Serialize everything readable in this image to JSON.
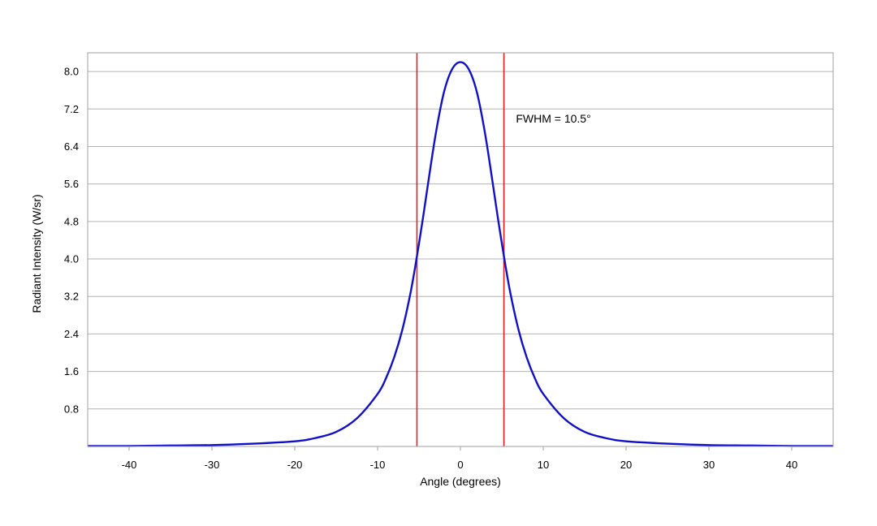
{
  "chart_data": {
    "type": "line",
    "title": "",
    "xlabel": "Angle (degrees)",
    "ylabel": "Radiant Intensity (W/sr)",
    "xlim": [
      -45,
      45
    ],
    "ylim": [
      0,
      8.4
    ],
    "x_ticks": [
      -40,
      -30,
      -20,
      -10,
      0,
      10,
      20,
      30,
      40
    ],
    "x_tick_labels": [
      "-40",
      "-30",
      "-20",
      "-10",
      "0",
      "10",
      "20",
      "30",
      "40"
    ],
    "y_ticks": [
      0.8,
      1.6,
      2.4,
      3.2,
      4.0,
      4.8,
      5.6,
      6.4,
      7.2,
      8.0
    ],
    "y_tick_labels": [
      "0.8",
      "1.6",
      "2.4",
      "3.2",
      "4.0",
      "4.8",
      "5.6",
      "6.4",
      "7.2",
      "8.0"
    ],
    "grid": "horizontal",
    "legend": "none",
    "series": [
      {
        "color": "#1010c8",
        "x": [
          -45,
          -40,
          -35,
          -30,
          -25,
          -20,
          -17.5,
          -15,
          -12.5,
          -10,
          -9,
          -8,
          -7,
          -6,
          -5.25,
          -4.5,
          -4,
          -3,
          -2,
          -1,
          0,
          1,
          2,
          3,
          4,
          4.5,
          5.25,
          6,
          7,
          8,
          9,
          10,
          12.5,
          15,
          17.5,
          20,
          25,
          30,
          35,
          40,
          45
        ],
        "y": [
          0.01,
          0.01,
          0.02,
          0.03,
          0.06,
          0.11,
          0.18,
          0.31,
          0.6,
          1.12,
          1.45,
          1.9,
          2.5,
          3.3,
          4.06,
          4.9,
          5.5,
          6.65,
          7.55,
          8.05,
          8.2,
          8.05,
          7.55,
          6.65,
          5.5,
          4.9,
          4.06,
          3.3,
          2.5,
          1.9,
          1.45,
          1.12,
          0.6,
          0.31,
          0.18,
          0.11,
          0.06,
          0.03,
          0.02,
          0.01,
          0.01
        ]
      }
    ],
    "vlines": [
      {
        "x": -5.25,
        "color": "#e02020"
      },
      {
        "x": 5.25,
        "color": "#e02020"
      }
    ],
    "annotations": [
      {
        "text": "FWHM = 10.5°",
        "x": 6.7,
        "y": 7.0
      }
    ],
    "colors": {
      "plot_border": "#a0a0a0",
      "grid": "#b4b4b4",
      "curve": "#1010c8",
      "fwhm_line": "#e02020"
    }
  }
}
